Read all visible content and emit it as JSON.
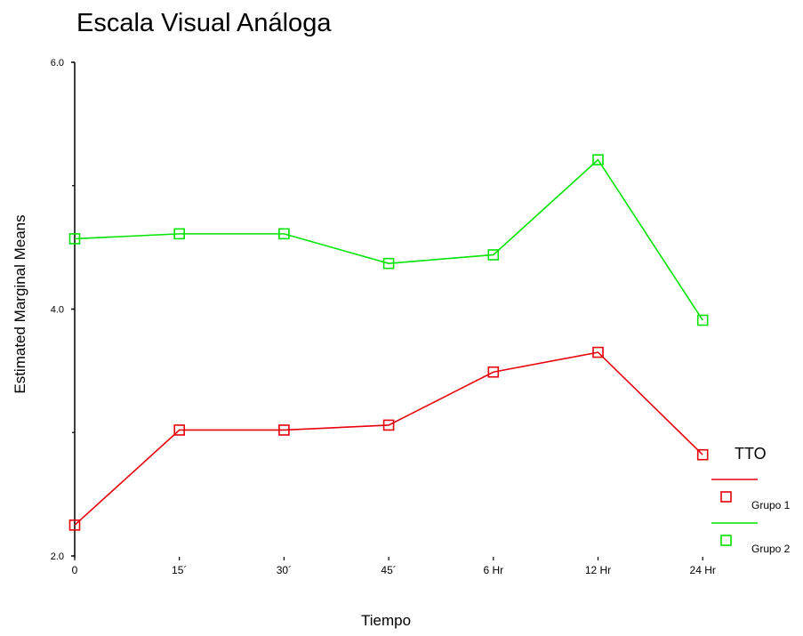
{
  "chart_data": {
    "type": "line",
    "title": "Escala Visual Análoga",
    "xlabel": "Tiempo",
    "ylabel": "Estimated Marginal Means",
    "categories": [
      "0",
      "15´",
      "30´",
      "45´",
      "6 Hr",
      "12 Hr",
      "24 Hr"
    ],
    "ylim": [
      2.0,
      6.0
    ],
    "y_tick_labels": [
      "2.0",
      "4.0",
      "6.0"
    ],
    "y_minor_ticks": [
      3.0,
      5.0
    ],
    "grid": false,
    "legend": {
      "title": "TTO",
      "placement": "right"
    },
    "series": [
      {
        "name": "Grupo 1",
        "color": "#e8000b",
        "marker": "square",
        "values": [
          2.25,
          3.02,
          3.02,
          3.06,
          3.49,
          3.65,
          2.82
        ]
      },
      {
        "name": "Grupo 2",
        "color": "#00e400",
        "marker": "square",
        "values": [
          4.57,
          4.61,
          4.61,
          4.37,
          4.44,
          5.21,
          3.91
        ]
      }
    ]
  }
}
